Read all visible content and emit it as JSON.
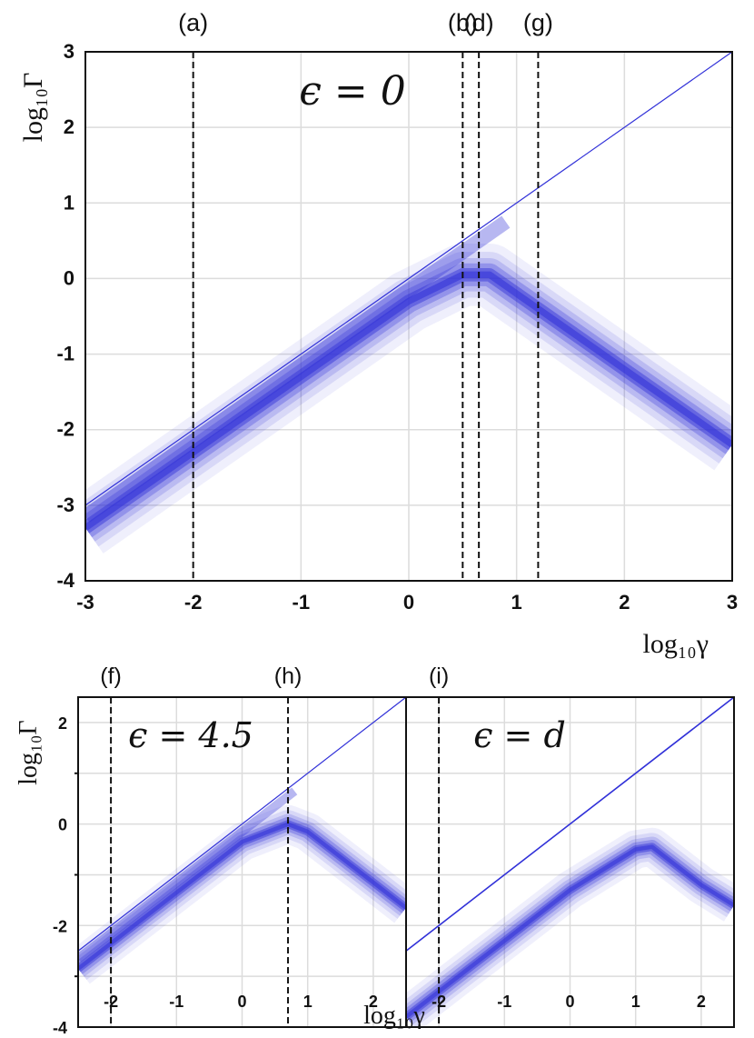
{
  "colors": {
    "band": "#3030d8",
    "grid": "#dcdcdc",
    "frame": "#111111",
    "dash": "#111111"
  },
  "chart_data": [
    {
      "type": "line",
      "title": "ϵ = 0",
      "xlabel": "log₁₀γ",
      "ylabel": "log₁₀Γ",
      "xlim": [
        -3,
        3
      ],
      "ylim": [
        -4,
        3
      ],
      "xticks": [
        "-3",
        "-2",
        "-1",
        "0",
        "1",
        "2",
        "3"
      ],
      "yticks": [
        "-4",
        "-3",
        "-2",
        "-1",
        "0",
        "1",
        "2",
        "3"
      ],
      "grid": true,
      "markers": [
        {
          "label": "(a)",
          "x": -2.0
        },
        {
          "label": "(b)",
          "x": 0.5
        },
        {
          "label": "(d)",
          "x": 0.65
        },
        {
          "label": "(g)",
          "x": 1.2
        }
      ],
      "series": [
        {
          "kind": "upper-line",
          "x": [
            -3,
            3
          ],
          "y": [
            -3.0,
            3.0
          ]
        },
        {
          "kind": "band-center",
          "x": [
            -3,
            -2,
            -1,
            0,
            0.5,
            0.75,
            1,
            1.5,
            2,
            3
          ],
          "y": [
            -3.3,
            -2.3,
            -1.3,
            -0.3,
            0.05,
            0.05,
            -0.2,
            -0.7,
            -1.2,
            -2.2
          ]
        }
      ]
    },
    {
      "type": "line",
      "title": "ϵ = 4.5",
      "xlabel": "log₁₀γ",
      "ylabel": "log₁₀Γ",
      "xlim": [
        -2.5,
        2.5
      ],
      "ylim": [
        -4,
        2.5
      ],
      "xticks": [
        "-2",
        "-1",
        "0",
        "1",
        "2"
      ],
      "yticks": [
        "-4",
        "-2",
        "0",
        "2"
      ],
      "grid": true,
      "markers": [
        {
          "label": "(f)",
          "x": -2.0
        },
        {
          "label": "(h)",
          "x": 0.7
        }
      ],
      "series": [
        {
          "kind": "upper-line",
          "x": [
            -2.5,
            2.5
          ],
          "y": [
            -2.5,
            2.5
          ]
        },
        {
          "kind": "band-center",
          "x": [
            -2.5,
            -2,
            -1,
            0,
            0.7,
            1,
            1.5,
            2,
            2.5
          ],
          "y": [
            -2.85,
            -2.35,
            -1.35,
            -0.35,
            0.0,
            -0.15,
            -0.65,
            -1.15,
            -1.65
          ]
        }
      ]
    },
    {
      "type": "line",
      "title": "ϵ = d",
      "xlabel": "log₁₀γ",
      "ylabel": "",
      "xlim": [
        -2.5,
        2.5
      ],
      "ylim": [
        -4,
        2.5
      ],
      "xticks": [
        "-2",
        "-1",
        "0",
        "1",
        "2"
      ],
      "yticks": [],
      "grid": true,
      "markers": [
        {
          "label": "(i)",
          "x": -2.0
        }
      ],
      "series": [
        {
          "kind": "upper-line",
          "x": [
            -2.5,
            2.5
          ],
          "y": [
            -2.5,
            2.5
          ]
        },
        {
          "kind": "band-center",
          "x": [
            -2.5,
            -2,
            -1,
            0,
            1,
            1.25,
            1.5,
            2,
            2.5
          ],
          "y": [
            -3.8,
            -3.3,
            -2.3,
            -1.3,
            -0.5,
            -0.45,
            -0.7,
            -1.2,
            -1.6
          ]
        }
      ]
    }
  ]
}
